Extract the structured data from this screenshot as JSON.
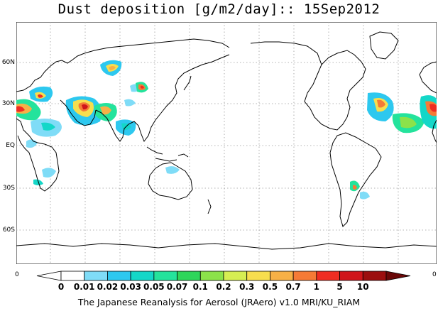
{
  "title": "Dust deposition [g/m2/day]:: 15Sep2012",
  "footer": "The Japanese Reanalysis for Aerosol (JRAero) v1.0 MRI/KU_RIAM",
  "lat_labels": [
    "60N",
    "30N",
    "EQ",
    "30S",
    "60S"
  ],
  "edge_labels": {
    "left": "0",
    "right": "0"
  },
  "legend": {
    "ticks": [
      "0",
      "0.01",
      "0.02",
      "0.03",
      "0.05",
      "0.07",
      "0.1",
      "0.2",
      "0.3",
      "0.5",
      "0.7",
      "1",
      "5",
      "10"
    ],
    "colors": [
      "#ffffff",
      "#ffffff",
      "#7fdcf7",
      "#2dc8ef",
      "#14d7c8",
      "#24e39c",
      "#2ed65a",
      "#8ce24a",
      "#d6ee52",
      "#f7de4e",
      "#f7b046",
      "#f57a36",
      "#ef2d22",
      "#d0151a",
      "#9c0e0e",
      "#6a0808"
    ]
  },
  "colors": {
    "coastline": "#000000",
    "grid": "#9a9a9a",
    "background": "#ffffff"
  }
}
